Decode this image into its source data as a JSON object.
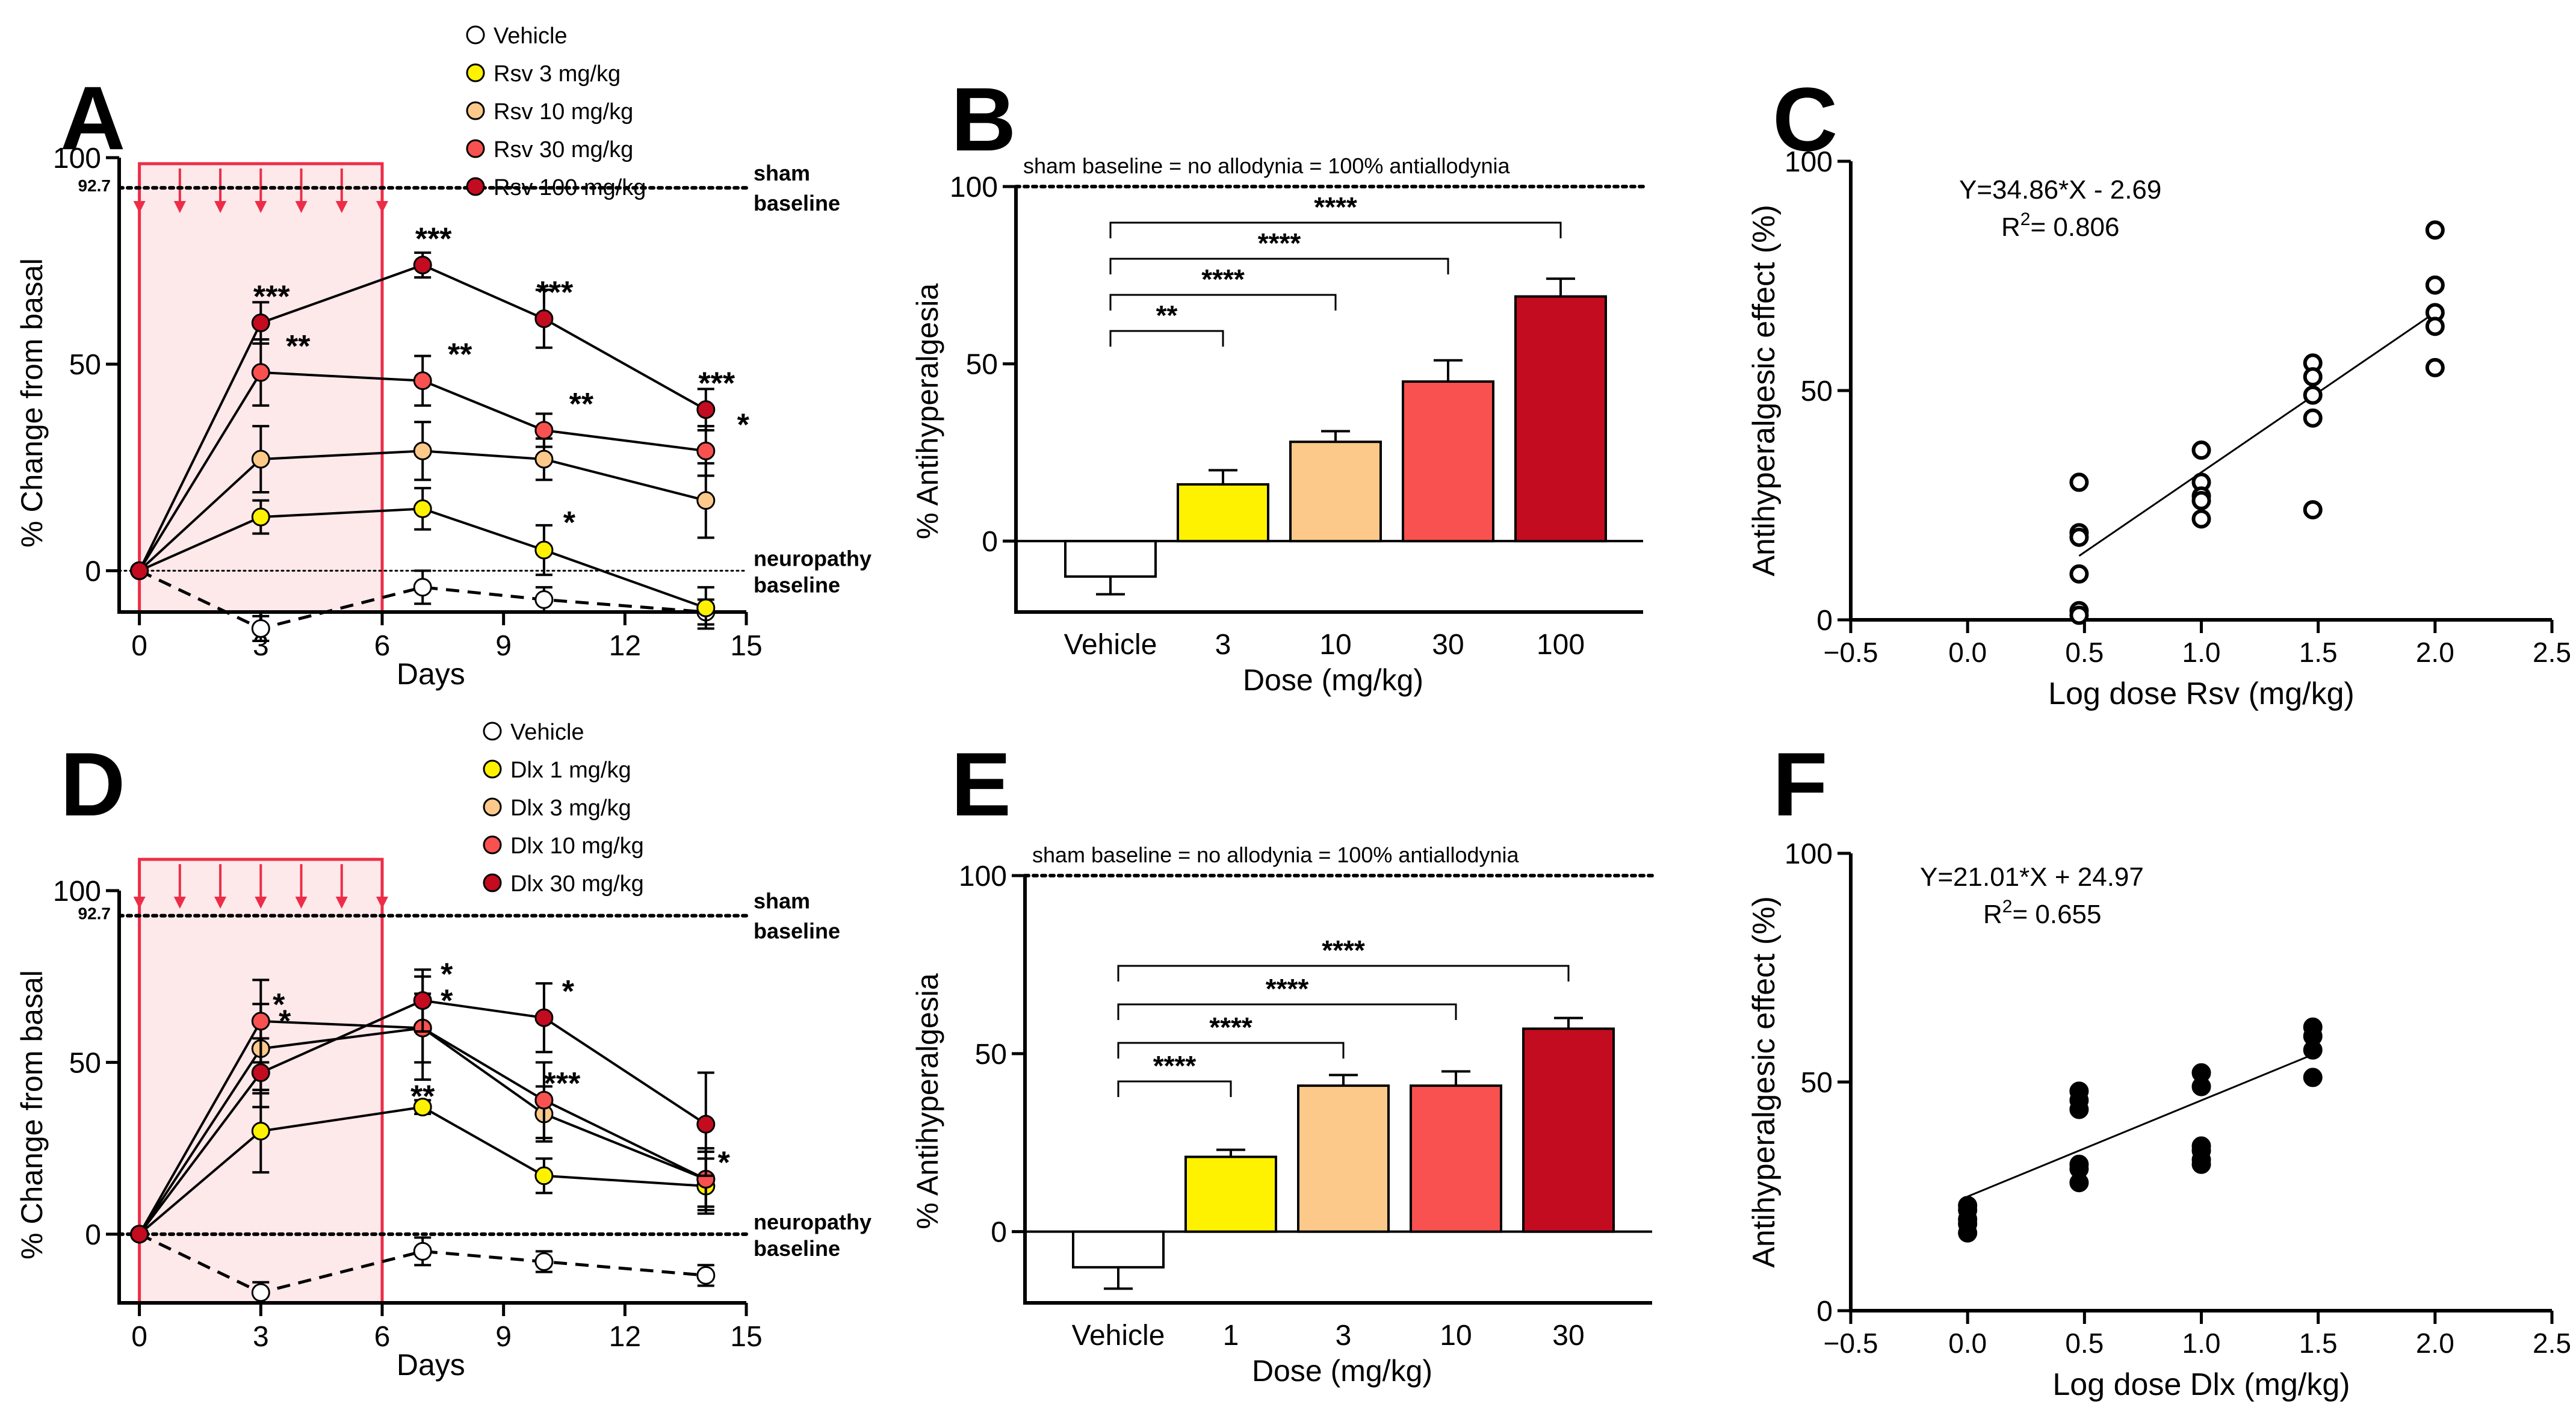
{
  "figure": {
    "description_panels": [
      "A",
      "B",
      "C",
      "D",
      "E",
      "F"
    ]
  },
  "colors": {
    "vehicle": "#ffffff",
    "dose1": "#fff200",
    "dose2": "#fdc98a",
    "dose3": "#f8514f",
    "dose4": "#c30c1f",
    "treat_fill": "#fde8ea",
    "treat_stroke": "#ed2d47",
    "arrow": "#ed2d47"
  },
  "chart_data": [
    {
      "panel": "A",
      "type": "line",
      "xlabel": "Days",
      "ylabel": "% Change from basal",
      "xlim": [
        -0.5,
        15
      ],
      "ylim": [
        -10,
        100
      ],
      "xticks": [
        "0",
        "3",
        "6",
        "9",
        "12",
        "15"
      ],
      "yticks": [
        "0",
        "50",
        "100"
      ],
      "treatment_window": [
        0,
        6
      ],
      "arrow_days": [
        0,
        1,
        2,
        3,
        4,
        5,
        6
      ],
      "ref_lines": [
        {
          "y": 92.7,
          "tick_label": "92.7",
          "label_1": "sham",
          "label_2": "baseline",
          "style": "dotted"
        },
        {
          "y": 0,
          "label_1": "neuropathy",
          "label_2": "baseline",
          "style": "thin-dotted"
        }
      ],
      "legend": [
        {
          "name": "Vehicle",
          "color_key": "vehicle"
        },
        {
          "name": "Rsv    3 mg/kg",
          "color_key": "dose1"
        },
        {
          "name": "Rsv   10 mg/kg",
          "color_key": "dose2"
        },
        {
          "name": "Rsv   30 mg/kg",
          "color_key": "dose3"
        },
        {
          "name": "Rsv 100 mg/kg",
          "color_key": "dose4"
        }
      ],
      "series": [
        {
          "name": "Vehicle",
          "color_key": "vehicle",
          "dashed": true,
          "x": [
            0,
            3,
            7,
            10,
            14
          ],
          "y": [
            0,
            -14,
            -4,
            -7,
            -10
          ],
          "err": [
            0,
            3,
            4,
            3,
            3
          ],
          "stars": [
            "",
            "",
            "",
            "",
            ""
          ]
        },
        {
          "name": "Rsv 3 mg/kg",
          "color_key": "dose1",
          "dashed": false,
          "x": [
            0,
            3,
            7,
            10,
            14
          ],
          "y": [
            0,
            13,
            15,
            5,
            -9
          ],
          "err": [
            0,
            4,
            5,
            6,
            5
          ],
          "stars": [
            "",
            "",
            "",
            "*",
            ""
          ]
        },
        {
          "name": "Rsv 10 mg/kg",
          "color_key": "dose2",
          "dashed": false,
          "x": [
            0,
            3,
            7,
            10,
            14
          ],
          "y": [
            0,
            27,
            29,
            27,
            17
          ],
          "err": [
            0,
            8,
            7,
            5,
            9
          ],
          "stars": [
            "",
            "",
            "",
            "",
            ""
          ]
        },
        {
          "name": "Rsv 30 mg/kg",
          "color_key": "dose3",
          "dashed": false,
          "x": [
            0,
            3,
            7,
            10,
            14
          ],
          "y": [
            0,
            48,
            46,
            34,
            29
          ],
          "err": [
            0,
            8,
            6,
            4,
            6
          ],
          "stars": [
            "",
            "**",
            "**",
            "**",
            "*"
          ]
        },
        {
          "name": "Rsv 100 mg/kg",
          "color_key": "dose4",
          "dashed": false,
          "x": [
            0,
            3,
            7,
            10,
            14
          ],
          "y": [
            0,
            60,
            74,
            61,
            39
          ],
          "err": [
            0,
            5,
            3,
            7,
            5
          ],
          "stars": [
            "",
            "***",
            "***",
            "***",
            "***"
          ]
        }
      ]
    },
    {
      "panel": "B",
      "type": "bar",
      "xlabel": "Dose (mg/kg)",
      "ylabel": "% Antihyperalgesia",
      "categories": [
        "Vehicle",
        "3",
        "10",
        "30",
        "100"
      ],
      "values": [
        -10,
        16,
        28,
        45,
        69
      ],
      "errors": [
        5,
        4,
        3,
        6,
        5
      ],
      "color_keys": [
        "vehicle",
        "dose1",
        "dose2",
        "dose3",
        "dose4"
      ],
      "ylim": [
        -20,
        100
      ],
      "yticks": [
        "0",
        "50",
        "100"
      ],
      "ref_text": "sham baseline =  no allodynia =  100% antiallodynia",
      "comparisons": [
        {
          "from": 0,
          "to": 1,
          "label": "**"
        },
        {
          "from": 0,
          "to": 2,
          "label": "****"
        },
        {
          "from": 0,
          "to": 3,
          "label": "****"
        },
        {
          "from": 0,
          "to": 4,
          "label": "****"
        }
      ]
    },
    {
      "panel": "C",
      "type": "scatter",
      "xlabel": "Log dose Rsv (mg/kg)",
      "ylabel": "Antihyperalgesic effect (%)",
      "xlim": [
        -0.5,
        2.5
      ],
      "ylim": [
        0,
        100
      ],
      "xticks": [
        "-0.5",
        "0.0",
        "0.5",
        "1.0",
        "1.5",
        "2.0",
        "2.5"
      ],
      "yticks": [
        "0",
        "50",
        "100"
      ],
      "marker": "open",
      "equation": "Y=34.86*X - 2.69",
      "r2_label": "R",
      "r2_sup": "2",
      "r2_value": "= 0.806",
      "fit": {
        "slope": 34.86,
        "intercept": -2.69,
        "x_range": [
          0.477,
          2.0
        ]
      },
      "x": [
        0.477,
        0.477,
        0.477,
        0.477,
        0.477,
        0.477,
        1.0,
        1.0,
        1.0,
        1.0,
        1.0,
        1.477,
        1.477,
        1.477,
        1.477,
        1.477,
        2.0,
        2.0,
        2.0,
        2.0,
        2.0
      ],
      "y": [
        30,
        19,
        18,
        10,
        2,
        1,
        37,
        30,
        27,
        26,
        22,
        56,
        53,
        49,
        44,
        24,
        85,
        73,
        67,
        64,
        55
      ]
    },
    {
      "panel": "D",
      "type": "line",
      "xlabel": "Days",
      "ylabel": "% Change from basal",
      "xlim": [
        -0.5,
        15
      ],
      "ylim": [
        -20,
        100
      ],
      "xticks": [
        "0",
        "3",
        "6",
        "9",
        "12",
        "15"
      ],
      "yticks": [
        "0",
        "50",
        "100"
      ],
      "treatment_window": [
        0,
        6
      ],
      "arrow_days": [
        0,
        1,
        2,
        3,
        4,
        5,
        6
      ],
      "ref_lines": [
        {
          "y": 92.7,
          "tick_label": "92.7",
          "label_1": "sham",
          "label_2": "baseline",
          "style": "dotted"
        },
        {
          "y": 0,
          "label_1": "neuropathy",
          "label_2": "baseline",
          "style": "dotted"
        }
      ],
      "legend": [
        {
          "name": "Vehicle",
          "color_key": "vehicle"
        },
        {
          "name": "Dlx   1 mg/kg",
          "color_key": "dose1"
        },
        {
          "name": "Dlx   3 mg/kg",
          "color_key": "dose2"
        },
        {
          "name": "Dlx 10 mg/kg",
          "color_key": "dose3"
        },
        {
          "name": "Dlx 30 mg/kg",
          "color_key": "dose4"
        }
      ],
      "series": [
        {
          "name": "Vehicle",
          "color_key": "vehicle",
          "dashed": true,
          "x": [
            0,
            3,
            7,
            10,
            14
          ],
          "y": [
            0,
            -17,
            -5,
            -8,
            -12
          ],
          "err": [
            0,
            3,
            4,
            3,
            3
          ],
          "stars": [
            "",
            "",
            "",
            "",
            ""
          ]
        },
        {
          "name": "Dlx 1 mg/kg",
          "color_key": "dose1",
          "dashed": false,
          "x": [
            0,
            3,
            7,
            10,
            14
          ],
          "y": [
            0,
            30,
            37,
            17,
            14
          ],
          "err": [
            0,
            12,
            2,
            5,
            8
          ],
          "stars": [
            "",
            "",
            "**",
            "",
            ""
          ]
        },
        {
          "name": "Dlx 3 mg/kg",
          "color_key": "dose2",
          "dashed": false,
          "x": [
            0,
            3,
            7,
            10,
            14
          ],
          "y": [
            0,
            54,
            60,
            35,
            16
          ],
          "err": [
            0,
            13,
            10,
            8,
            9
          ],
          "stars": [
            "",
            "*",
            "*",
            "",
            ""
          ]
        },
        {
          "name": "Dlx 10 mg/kg",
          "color_key": "dose3",
          "dashed": false,
          "x": [
            0,
            3,
            7,
            10,
            14
          ],
          "y": [
            0,
            62,
            60,
            39,
            16
          ],
          "err": [
            0,
            12,
            15,
            11,
            8
          ],
          "stars": [
            "",
            "*",
            "",
            "***",
            "*"
          ]
        },
        {
          "name": "Dlx 30 mg/kg",
          "color_key": "dose4",
          "dashed": false,
          "x": [
            0,
            3,
            7,
            10,
            14
          ],
          "y": [
            0,
            47,
            68,
            63,
            32
          ],
          "err": [
            0,
            10,
            9,
            10,
            15
          ],
          "stars": [
            "",
            "",
            "*",
            "*",
            ""
          ]
        }
      ]
    },
    {
      "panel": "E",
      "type": "bar",
      "xlabel": "Dose (mg/kg)",
      "ylabel": "% Antihyperalgesia",
      "categories": [
        "Vehicle",
        "1",
        "3",
        "10",
        "30"
      ],
      "values": [
        -10,
        21,
        41,
        41,
        57
      ],
      "errors": [
        6,
        2,
        3,
        4,
        3
      ],
      "color_keys": [
        "vehicle",
        "dose1",
        "dose2",
        "dose3",
        "dose4"
      ],
      "ylim": [
        -20,
        100
      ],
      "yticks": [
        "0",
        "50",
        "100"
      ],
      "ref_text": "sham baseline =  no allodynia =  100% antiallodynia",
      "comparisons": [
        {
          "from": 0,
          "to": 1,
          "label": "****"
        },
        {
          "from": 0,
          "to": 2,
          "label": "****"
        },
        {
          "from": 0,
          "to": 3,
          "label": "****"
        },
        {
          "from": 0,
          "to": 4,
          "label": "****"
        }
      ]
    },
    {
      "panel": "F",
      "type": "scatter",
      "xlabel": "Log dose Dlx (mg/kg)",
      "ylabel": "Antihyperalgesic effect (%)",
      "xlim": [
        -0.5,
        2.5
      ],
      "ylim": [
        0,
        100
      ],
      "xticks": [
        "-0.5",
        "0.0",
        "0.5",
        "1.0",
        "1.5",
        "2.0",
        "2.5"
      ],
      "yticks": [
        "0",
        "50",
        "100"
      ],
      "marker": "filled",
      "equation": "Y=21.01*X + 24.97",
      "r2_label": "R",
      "r2_sup": "2",
      "r2_value": "= 0.655",
      "fit": {
        "slope": 21.01,
        "intercept": 24.97,
        "x_range": [
          0.0,
          1.477
        ]
      },
      "x": [
        0,
        0,
        0,
        0,
        0,
        0.477,
        0.477,
        0.477,
        0.477,
        0.477,
        0.477,
        1.0,
        1.0,
        1.0,
        1.0,
        1.0,
        1.0,
        1.477,
        1.477,
        1.477,
        1.477
      ],
      "y": [
        23,
        22,
        20,
        19,
        17,
        48,
        46,
        44,
        32,
        31,
        28,
        52,
        49,
        36,
        35,
        33,
        32,
        62,
        60,
        57,
        51
      ]
    }
  ]
}
